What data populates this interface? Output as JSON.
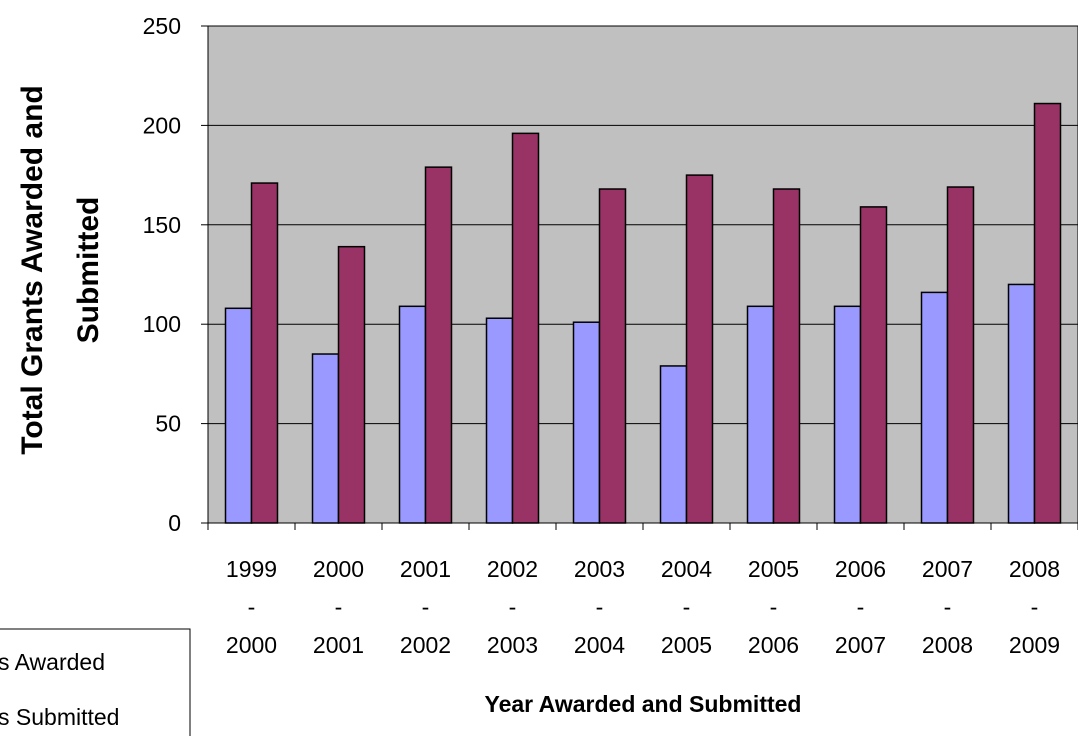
{
  "chart_data": {
    "type": "bar",
    "title": "",
    "ylabel_line1": "Total Grants Awarded and",
    "ylabel_line2": "Submitted",
    "xlabel": "Year Awarded and Submitted",
    "ylim": [
      0,
      250
    ],
    "ytick_step": 50,
    "grid": true,
    "legend_position": "bottom-left",
    "categories": [
      {
        "top": "1999",
        "mid": "-",
        "bottom": "2000"
      },
      {
        "top": "2000",
        "mid": "-",
        "bottom": "2001"
      },
      {
        "top": "2001",
        "mid": "-",
        "bottom": "2002"
      },
      {
        "top": "2002",
        "mid": "-",
        "bottom": "2003"
      },
      {
        "top": "2003",
        "mid": "-",
        "bottom": "2004"
      },
      {
        "top": "2004",
        "mid": "-",
        "bottom": "2005"
      },
      {
        "top": "2005",
        "mid": "-",
        "bottom": "2006"
      },
      {
        "top": "2006",
        "mid": "-",
        "bottom": "2007"
      },
      {
        "top": "2007",
        "mid": "-",
        "bottom": "2008"
      },
      {
        "top": "2008",
        "mid": "-",
        "bottom": "2009"
      }
    ],
    "series": [
      {
        "name": "s Awarded",
        "color": "#9999ff",
        "values": [
          108,
          85,
          109,
          103,
          101,
          79,
          109,
          109,
          116,
          120
        ]
      },
      {
        "name": "s Submitted",
        "color": "#993366",
        "values": [
          171,
          139,
          179,
          196,
          168,
          175,
          168,
          159,
          169,
          211
        ]
      }
    ],
    "plot_background": "#c0c0c0"
  }
}
